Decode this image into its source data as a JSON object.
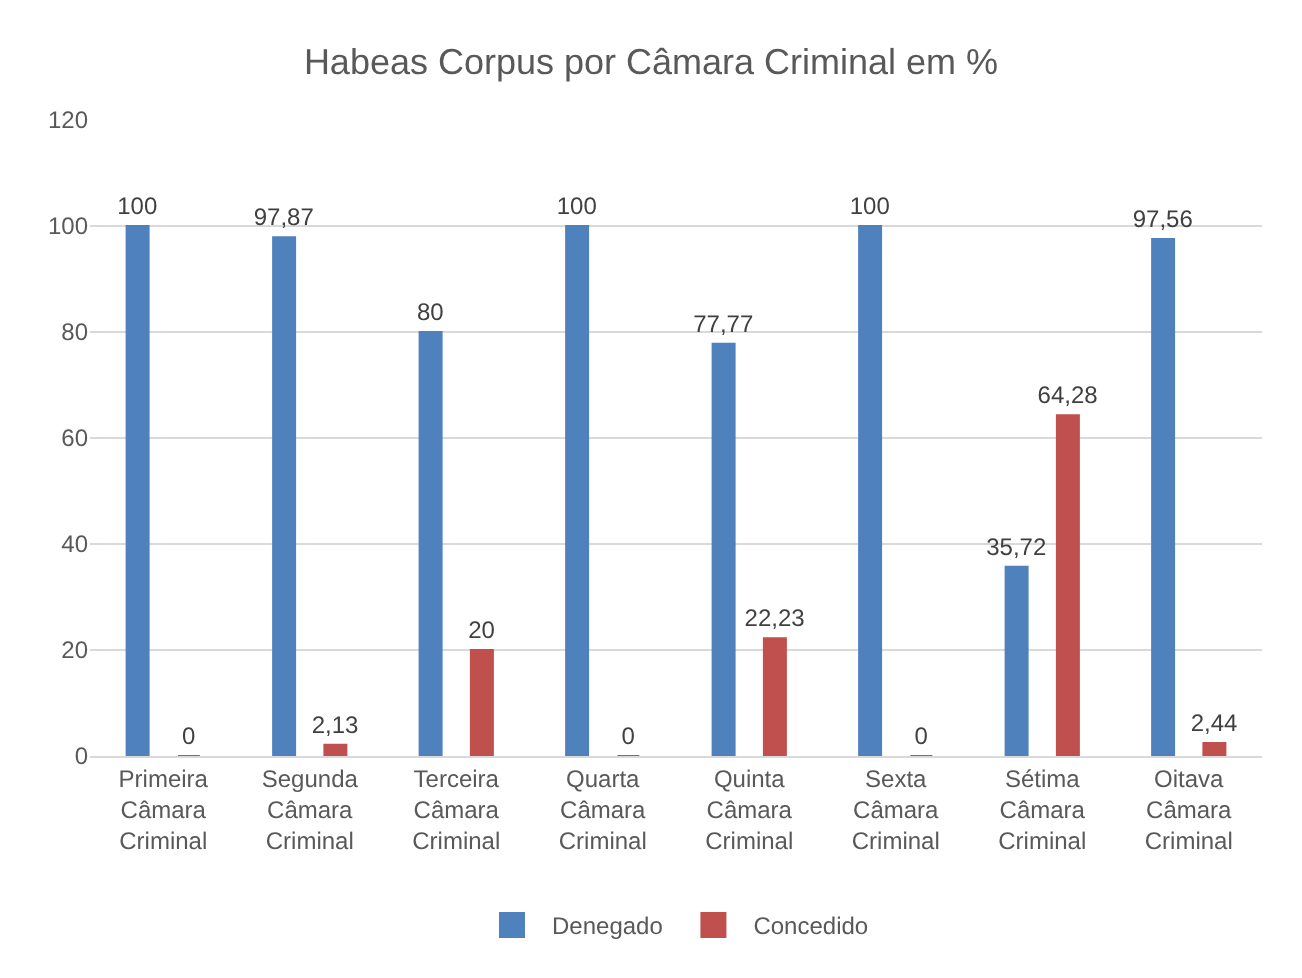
{
  "chart_data": {
    "type": "bar",
    "title": "Habeas Corpus por Câmara Criminal em %",
    "categories": [
      "Primeira Câmara Criminal",
      "Segunda Câmara Criminal",
      "Terceira Câmara Criminal",
      "Quarta Câmara Criminal",
      "Quinta Câmara Criminal",
      "Sexta Câmara Criminal",
      "Sétima Câmara Criminal",
      "Oitava Câmara Criminal"
    ],
    "series": [
      {
        "name": "Denegado",
        "color": "#4f81bd",
        "values": [
          100,
          97.87,
          80,
          100,
          77.77,
          100,
          35.72,
          97.56
        ],
        "value_labels": [
          "100",
          "97,87",
          "80",
          "100",
          "77,77",
          "100",
          "35,72",
          "97,56"
        ]
      },
      {
        "name": "Concedido",
        "color": "#c0504d",
        "values": [
          0,
          2.13,
          20,
          0,
          22.23,
          0,
          64.28,
          2.44
        ],
        "value_labels": [
          "0",
          "2,13",
          "20",
          "0",
          "22,23",
          "0",
          "64,28",
          "2,44"
        ]
      }
    ],
    "ylim": [
      0,
      120
    ],
    "yticks": [
      0,
      20,
      40,
      60,
      80,
      100,
      120
    ],
    "grid": "y",
    "legend": "bottom"
  }
}
